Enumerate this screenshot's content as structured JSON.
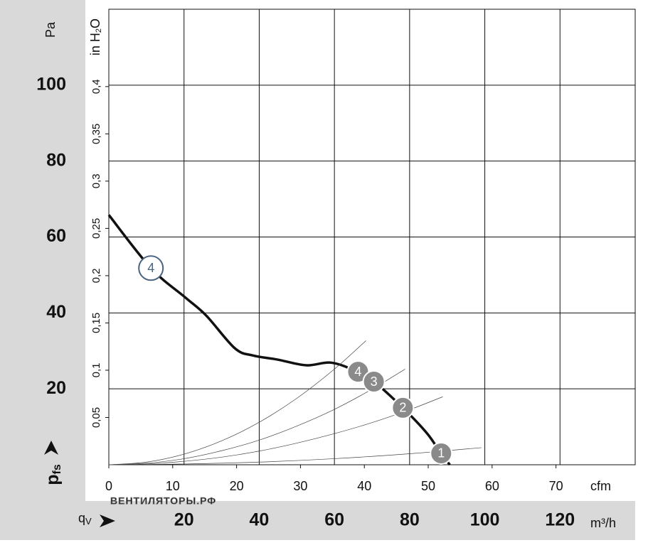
{
  "chart_data": {
    "type": "line",
    "y_label": "Pa",
    "y2_label_parts": [
      "in H",
      "2",
      "O"
    ],
    "pressure_symbol": [
      "p",
      "fs"
    ],
    "flow_symbol": [
      "q",
      "V"
    ],
    "x_label": "m³/h",
    "x2_label": "cfm",
    "watermark": "ВЕНТИЛЯТОРЫ.РФ",
    "xlim": [
      0,
      140
    ],
    "xticks": [
      20,
      40,
      60,
      80,
      100,
      120
    ],
    "ylim": [
      0,
      120
    ],
    "yticks": [
      20,
      40,
      60,
      80,
      100
    ],
    "x2lim": [
      0,
      82.4
    ],
    "x2ticks": [
      0,
      10,
      20,
      30,
      40,
      50,
      60,
      70
    ],
    "y2lim": [
      0,
      0.4818
    ],
    "y2ticks": [
      {
        "value": 0.05,
        "label": "0,05"
      },
      {
        "value": 0.1,
        "label": "0,1"
      },
      {
        "value": 0.15,
        "label": "0,15"
      },
      {
        "value": 0.2,
        "label": "0,2"
      },
      {
        "value": 0.25,
        "label": "0,25"
      },
      {
        "value": 0.3,
        "label": "0,3"
      },
      {
        "value": 0.35,
        "label": "0,35"
      },
      {
        "value": 0.4,
        "label": "0,4"
      }
    ],
    "grid": true,
    "series": [
      {
        "color": "#111111",
        "width": 3.5,
        "x": [
          0,
          11.2,
          20.3,
          25.9,
          33.5,
          38.3,
          44.9,
          52.5,
          59.1,
          65.7,
          70.5,
          78.2,
          84.7,
          88.3,
          90.7
        ],
        "values": [
          65.8,
          51.8,
          44.1,
          39.3,
          30.7,
          28.8,
          27.7,
          26.2,
          26.9,
          24.7,
          21.9,
          15.0,
          8.2,
          3.0,
          0
        ]
      },
      {
        "color": "#444444",
        "width": 0.7,
        "x": [
          0,
          10,
          20,
          30,
          40,
          50,
          60,
          68.4
        ],
        "values": [
          0,
          0.7,
          2.8,
          6.3,
          11.2,
          17.5,
          25.2,
          32.7
        ]
      },
      {
        "color": "#444444",
        "width": 0.7,
        "x": [
          0,
          10,
          20,
          30,
          40,
          50,
          60,
          70,
          78.8
        ],
        "values": [
          0,
          0.4,
          1.6,
          3.7,
          6.5,
          10.2,
          14.6,
          19.9,
          25.2
        ]
      },
      {
        "color": "#444444",
        "width": 0.7,
        "x": [
          0,
          10,
          20,
          30,
          40,
          50,
          60,
          70,
          80,
          88.8
        ],
        "values": [
          0,
          0.2,
          0.9,
          2.0,
          3.6,
          5.7,
          8.2,
          11.1,
          14.5,
          17.9
        ]
      },
      {
        "color": "#444444",
        "width": 0.7,
        "x": [
          0,
          20,
          40,
          60,
          80,
          99.1
        ],
        "values": [
          0,
          0.2,
          0.7,
          1.6,
          2.9,
          4.5
        ]
      }
    ],
    "operating_points": [
      {
        "label": "4",
        "x": 66.3,
        "y": 24.5,
        "style": "filled"
      },
      {
        "label": "3",
        "x": 70.5,
        "y": 21.9,
        "style": "filled"
      },
      {
        "label": "2",
        "x": 78.2,
        "y": 15.0,
        "style": "filled"
      },
      {
        "label": "1",
        "x": 88.4,
        "y": 3.0,
        "style": "filled"
      },
      {
        "label": "4",
        "x": 11.2,
        "y": 51.8,
        "style": "open"
      }
    ]
  }
}
